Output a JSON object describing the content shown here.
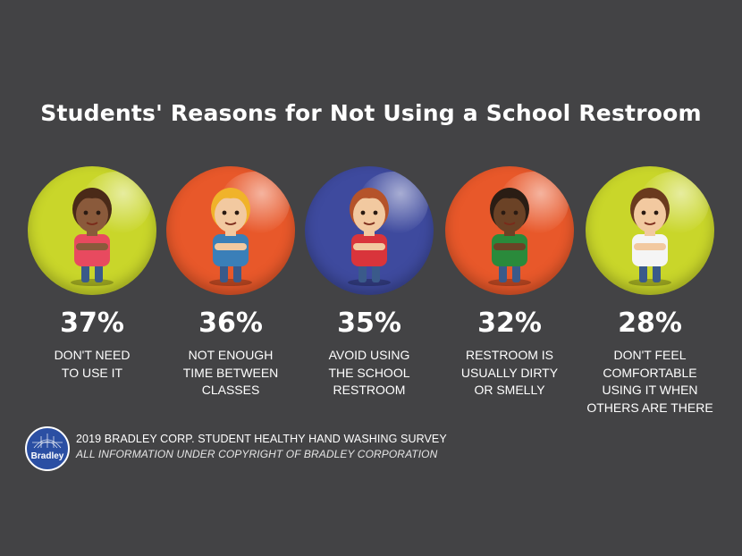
{
  "chart_data": {
    "type": "bar",
    "title": "Students' Reasons for Not Using a School Restroom",
    "categories": [
      "DON'T NEED\nTO USE IT",
      "NOT ENOUGH\nTIME BETWEEN\nCLASSES",
      "AVOID USING\nTHE SCHOOL\nRESTROOM",
      "RESTROOM IS\nUSUALLY DIRTY\nOR SMELLY",
      "DON'T FEEL\nCOMFORTABLE\nUSING IT WHEN\nOTHERS ARE THERE"
    ],
    "values": [
      37,
      36,
      35,
      32,
      28
    ],
    "value_labels": [
      "37%",
      "36%",
      "35%",
      "32%",
      "28%"
    ],
    "unit": "%",
    "circle_colors": [
      "#c9d62a",
      "#e8582a",
      "#3e4a9e",
      "#e8582a",
      "#c9d62a"
    ]
  },
  "footer": {
    "logo_text": "Bradley",
    "line1": "2019 BRADLEY CORP. STUDENT HEALTHY HAND WASHING SURVEY",
    "line2": "ALL INFORMATION UNDER COPYRIGHT OF BRADLEY CORPORATION"
  },
  "icons": [
    "girl-character-icon",
    "boy-character-icon",
    "girl-character-icon",
    "boy-character-icon",
    "boy-character-icon"
  ]
}
